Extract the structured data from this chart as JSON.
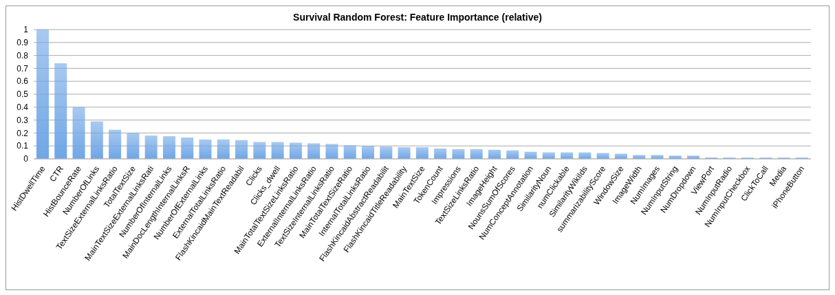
{
  "chart_data": {
    "type": "bar",
    "title": "Survival Random Forest: Feature Importance (relative)",
    "categories": [
      "HistDwellTime",
      "CTR",
      "HistBounceRate",
      "NumberOfLinks",
      "TextSizeExternalLinksRatio",
      "TotalTextSize",
      "MainTextSizeExternalLinksRati",
      "NumberOfInternalLinks",
      "MainDocLengthInternalLinksR",
      "NumberOfExternalLinks",
      "ExternalTotalLinksRatio",
      "FlashKincaidMainTextReadabil",
      "Clicks",
      "Clicks_dwell",
      "MainTotalTextSizeLinksRatio",
      "ExternalInternalLinksRatio",
      "TextSizeInternalLinksRatio",
      "MainTotalTextSizeRatio",
      "InternalTotalLinksRatio",
      "FlashKincaidAbstractReadabilit",
      "FlashKincaidTitleReadability",
      "MainTextSize",
      "TokenCount",
      "Impressions",
      "TextSizeLinksRatio",
      "ImageHeight",
      "NounsSumOfScores",
      "NumConceptAnnotation",
      "SimilarityNoun",
      "numClickable",
      "SimilarityWikiIds",
      "summarizabilityScore",
      "WindowSize",
      "ImageWidth",
      "NumImages",
      "NumInputString",
      "NumDropdown",
      "ViewPort",
      "NumInputRadio",
      "NumInputCheckbox",
      "ClickToCall",
      "Media",
      "iPhoneButton"
    ],
    "values": [
      1,
      0.74,
      0.4,
      0.29,
      0.225,
      0.2,
      0.18,
      0.175,
      0.165,
      0.15,
      0.15,
      0.145,
      0.13,
      0.13,
      0.125,
      0.12,
      0.115,
      0.105,
      0.1,
      0.095,
      0.09,
      0.09,
      0.08,
      0.075,
      0.075,
      0.07,
      0.065,
      0.055,
      0.05,
      0.05,
      0.05,
      0.045,
      0.04,
      0.03,
      0.03,
      0.025,
      0.025,
      0.01,
      0.01,
      0.01,
      0.01,
      0.01,
      0.01
    ],
    "color": "#6fa6e6",
    "ylim": [
      0,
      1
    ],
    "yticks": [
      0,
      0.1,
      0.2,
      0.3,
      0.4,
      0.5,
      0.6,
      0.7,
      0.8,
      0.9,
      1
    ],
    "grid": "y"
  }
}
